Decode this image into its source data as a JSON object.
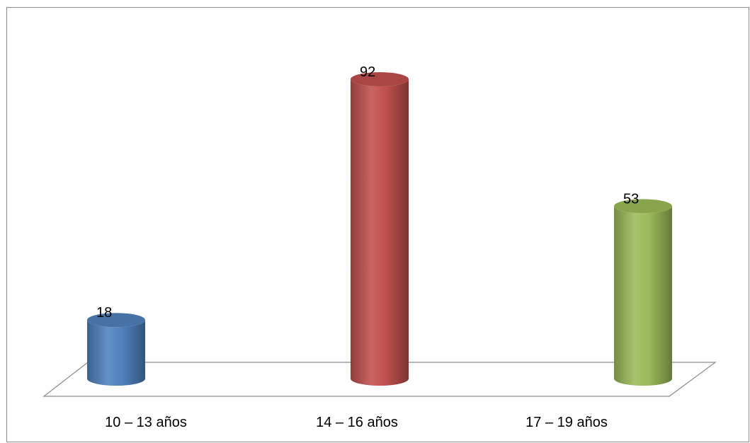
{
  "chart_data": {
    "type": "bar",
    "style": "3d-cylinder",
    "categories": [
      "10 – 13 años",
      "14 – 16 años",
      "17 – 19 años"
    ],
    "values": [
      18,
      92,
      53
    ],
    "data_labels": [
      "18",
      "92",
      "53"
    ],
    "colors": [
      "#4f81bd",
      "#c0504d",
      "#9bbb59"
    ],
    "ylim": [
      0,
      92
    ],
    "grid": false,
    "legend": "none",
    "title": "",
    "xlabel": "",
    "ylabel": ""
  }
}
